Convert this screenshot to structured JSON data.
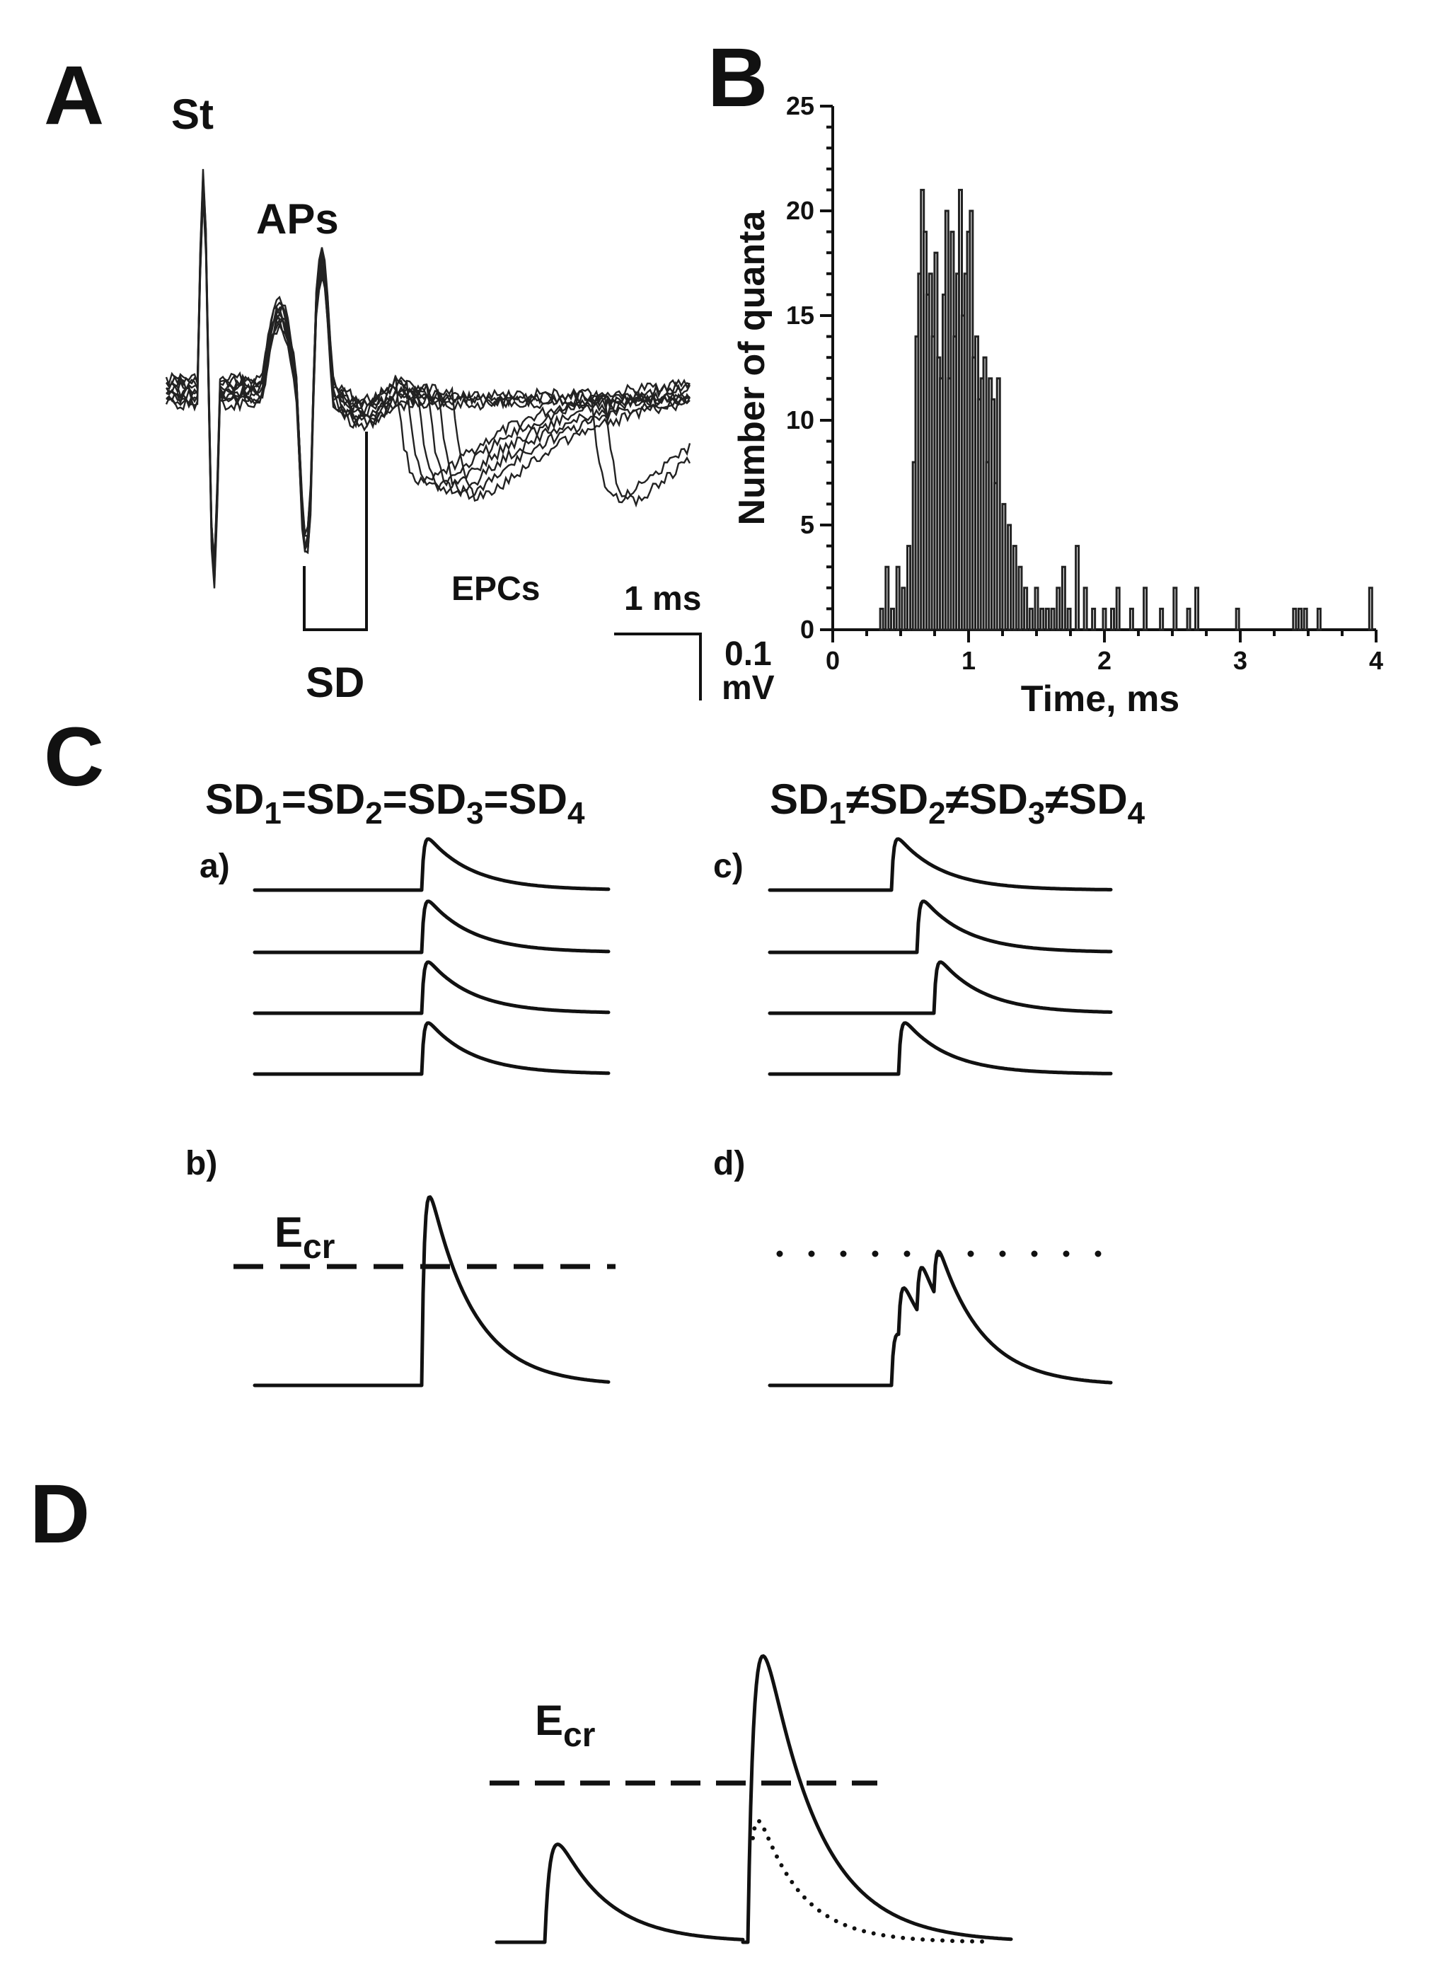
{
  "panels": {
    "A": {
      "letter": "A",
      "stim_label": "St",
      "aps_label": "APs",
      "sd_label": "SD",
      "epcs_label": "EPCs",
      "scale_time": "1 ms",
      "scale_amp_value": "0.1",
      "scale_amp_unit": "mV"
    },
    "B": {
      "letter": "B"
    },
    "C": {
      "letter": "C",
      "eq_title_parts": [
        {
          "t": "SD",
          "s": "1"
        },
        {
          "t": "=SD",
          "s": "2"
        },
        {
          "t": "=SD",
          "s": "3"
        },
        {
          "t": "=SD",
          "s": "4"
        }
      ],
      "neq_title_parts": [
        {
          "t": "SD",
          "s": "1"
        },
        {
          "t": "≠SD",
          "s": "2"
        },
        {
          "t": "≠SD",
          "s": "3"
        },
        {
          "t": "≠SD",
          "s": "4"
        }
      ],
      "sub_a": "a)",
      "sub_b": "b)",
      "sub_c": "c)",
      "sub_d": "d)",
      "ecr_main": "E",
      "ecr_sub": "cr"
    },
    "D": {
      "letter": "D",
      "ecr_main": "E",
      "ecr_sub": "cr"
    }
  },
  "chart_data": {
    "type": "bar",
    "panel": "B",
    "xlabel": "Time, ms",
    "ylabel": "Number of quanta",
    "xlim": [
      0,
      4
    ],
    "ylim": [
      0,
      25
    ],
    "x_ticks": [
      0,
      1,
      2,
      3,
      4
    ],
    "y_ticks": [
      0,
      5,
      10,
      15,
      20,
      25
    ],
    "grid": false,
    "x": [
      0.36,
      0.4,
      0.44,
      0.48,
      0.52,
      0.56,
      0.6,
      0.62,
      0.64,
      0.66,
      0.68,
      0.7,
      0.72,
      0.74,
      0.76,
      0.78,
      0.8,
      0.82,
      0.84,
      0.86,
      0.88,
      0.9,
      0.92,
      0.94,
      0.96,
      0.98,
      1.0,
      1.02,
      1.04,
      1.06,
      1.08,
      1.1,
      1.12,
      1.14,
      1.16,
      1.18,
      1.2,
      1.22,
      1.26,
      1.3,
      1.34,
      1.38,
      1.42,
      1.46,
      1.5,
      1.54,
      1.58,
      1.62,
      1.66,
      1.7,
      1.74,
      1.8,
      1.86,
      1.92,
      2.0,
      2.06,
      2.1,
      2.2,
      2.3,
      2.42,
      2.52,
      2.62,
      2.68,
      2.98,
      3.4,
      3.44,
      3.48,
      3.58,
      3.96
    ],
    "values": [
      1,
      3,
      1,
      3,
      2,
      4,
      8,
      14,
      17,
      21,
      19,
      16,
      17,
      14,
      18,
      13,
      12,
      16,
      20,
      12,
      19,
      14,
      17,
      21,
      15,
      17,
      19,
      20,
      13,
      14,
      11,
      12,
      13,
      8,
      12,
      11,
      7,
      12,
      6,
      5,
      4,
      3,
      2,
      1,
      2,
      1,
      1,
      1,
      2,
      3,
      1,
      4,
      2,
      1,
      1,
      1,
      2,
      1,
      2,
      1,
      2,
      1,
      2,
      1,
      1,
      1,
      1,
      1,
      2
    ]
  }
}
